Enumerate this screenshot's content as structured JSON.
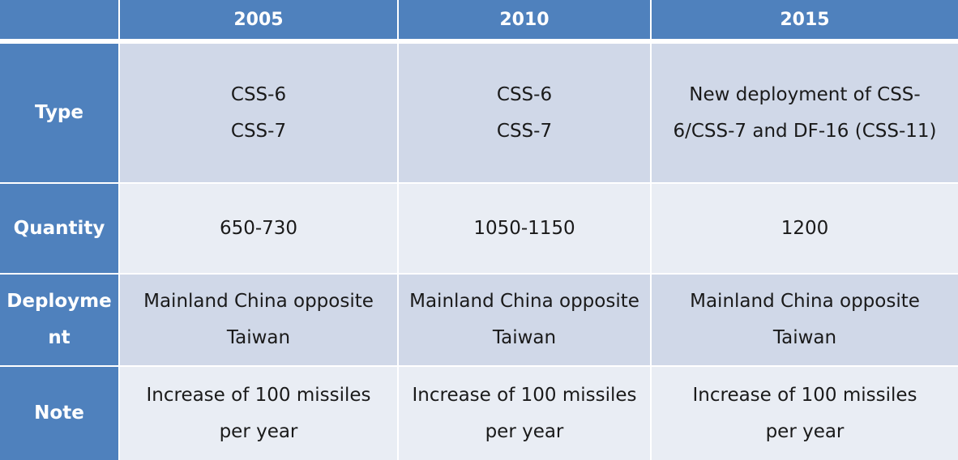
{
  "header": {
    "corner": "",
    "columns": [
      "2005",
      "2010",
      "2015"
    ]
  },
  "rows": [
    {
      "label": [
        "Type"
      ],
      "cells": [
        [
          "CSS-6",
          "CSS-7"
        ],
        [
          "CSS-6",
          "CSS-7"
        ],
        [
          "New deployment of CSS-",
          "6/CSS-7 and DF-16 (CSS-11)"
        ]
      ]
    },
    {
      "label": [
        "Quantity"
      ],
      "cells": [
        [
          "650-730"
        ],
        [
          "1050-1150"
        ],
        [
          "1200"
        ]
      ]
    },
    {
      "label": [
        "Deployme",
        "nt"
      ],
      "cells": [
        [
          "Mainland China opposite",
          "Taiwan"
        ],
        [
          "Mainland China opposite",
          "Taiwan"
        ],
        [
          "Mainland China opposite",
          "Taiwan"
        ]
      ]
    },
    {
      "label": [
        "Note"
      ],
      "cells": [
        [
          "Increase of 100 missiles",
          "per year"
        ],
        [
          "Increase of 100 missiles",
          "per year"
        ],
        [
          "Increase of 100 missiles",
          "per year"
        ]
      ]
    }
  ],
  "colors": {
    "header_bg": "#4f81bd",
    "band_dark": "#d0d8e8",
    "band_light": "#e9edf4",
    "header_text": "#ffffff",
    "body_text": "#1a1a1a"
  }
}
